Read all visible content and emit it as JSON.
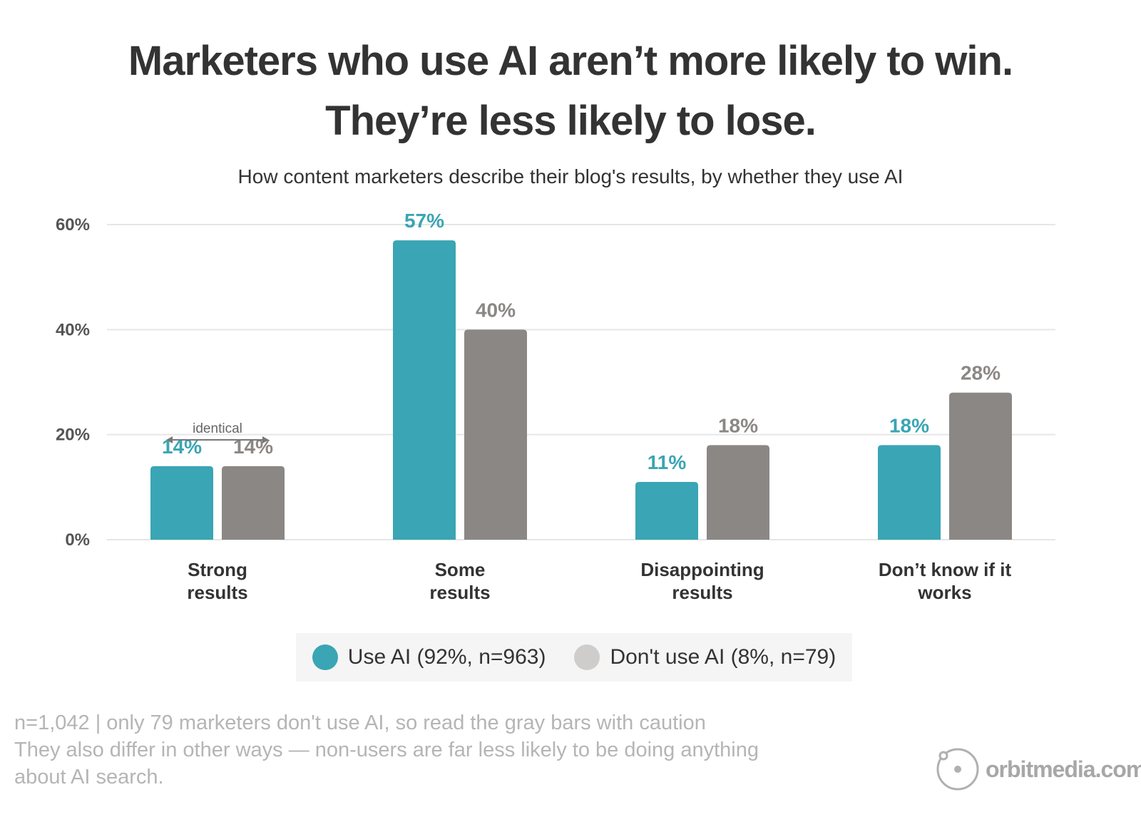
{
  "title_line1": "Marketers who use AI aren’t more likely to win.",
  "title_line2": "They’re less likely to lose.",
  "subtitle": "How content marketers describe their blog's results, by whether they use AI",
  "colors": {
    "use_ai": "#3aa5b4",
    "dont_use_ai": "#8b8784",
    "legend_dont": "#cfcdcb",
    "grid": "#e6e6e6"
  },
  "chart_data": {
    "type": "bar",
    "categories": [
      [
        "Strong",
        "results"
      ],
      [
        "Some",
        "results"
      ],
      [
        "Disappointing",
        "results"
      ],
      [
        "Don’t know if it",
        "works"
      ]
    ],
    "series": [
      {
        "name": "Use AI (92%, n=963)",
        "values": [
          14,
          57,
          11,
          18
        ],
        "labels": [
          "14%",
          "57%",
          "11%",
          "18%"
        ]
      },
      {
        "name": "Don't use AI (8%, n=79)",
        "values": [
          14,
          40,
          18,
          28
        ],
        "labels": [
          "14%",
          "40%",
          "18%",
          "28%"
        ]
      }
    ],
    "ylim": [
      0,
      60
    ],
    "yticks": [
      0,
      20,
      40,
      60
    ],
    "ytick_labels": [
      "0%",
      "20%",
      "40%",
      "60%"
    ],
    "grid": true,
    "annotation": {
      "text": "identical",
      "category_index": 0
    }
  },
  "legend": {
    "use_ai": "Use AI (92%, n=963)",
    "dont_use_ai": "Don't use AI (8%, n=79)"
  },
  "footnote": {
    "line1": "n=1,042 | only 79 marketers don't use AI, so read the gray bars with caution",
    "line2": "They also differ in other ways — non-users are far less likely to be doing anything",
    "line3": "about AI search."
  },
  "logo": {
    "text": "orbitmedia.com",
    "icon": "orbit-logo-icon"
  }
}
